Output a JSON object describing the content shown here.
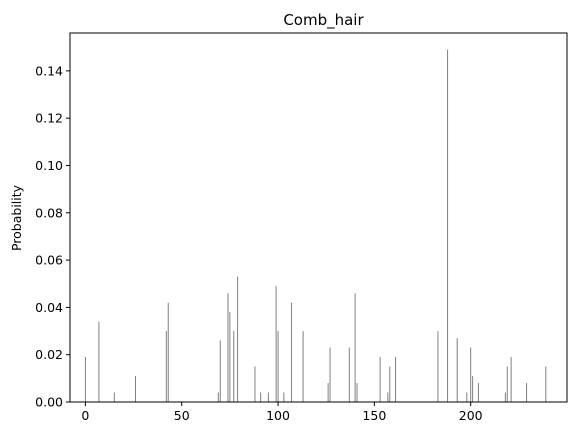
{
  "chart_data": {
    "type": "bar",
    "title": "Comb_hair",
    "xlabel": "",
    "ylabel": "Probability",
    "xlim": [
      -8,
      250
    ],
    "ylim": [
      0,
      0.156
    ],
    "xticks": [
      0,
      50,
      100,
      150,
      200
    ],
    "yticks": [
      0.0,
      0.02,
      0.04,
      0.06,
      0.08,
      0.1,
      0.12,
      0.14
    ],
    "ytick_labels": [
      "0.00",
      "0.02",
      "0.04",
      "0.06",
      "0.08",
      "0.10",
      "0.12",
      "0.14"
    ],
    "bar_color": "#808080",
    "grid": false,
    "legend": "none",
    "x": [
      0,
      7,
      15,
      26,
      42,
      43,
      69,
      70,
      74,
      75,
      77,
      79,
      88,
      91,
      95,
      99,
      100,
      103,
      107,
      113,
      126,
      127,
      137,
      140,
      141,
      153,
      157,
      158,
      161,
      183,
      188,
      193,
      198,
      200,
      201,
      204,
      218,
      219,
      221,
      229,
      239
    ],
    "values": [
      0.019,
      0.034,
      0.004,
      0.011,
      0.03,
      0.042,
      0.004,
      0.026,
      0.046,
      0.038,
      0.03,
      0.053,
      0.015,
      0.004,
      0.004,
      0.049,
      0.03,
      0.004,
      0.042,
      0.03,
      0.008,
      0.023,
      0.023,
      0.046,
      0.008,
      0.019,
      0.004,
      0.015,
      0.019,
      0.03,
      0.149,
      0.027,
      0.004,
      0.023,
      0.011,
      0.008,
      0.004,
      0.015,
      0.019,
      0.008,
      0.015
    ]
  }
}
